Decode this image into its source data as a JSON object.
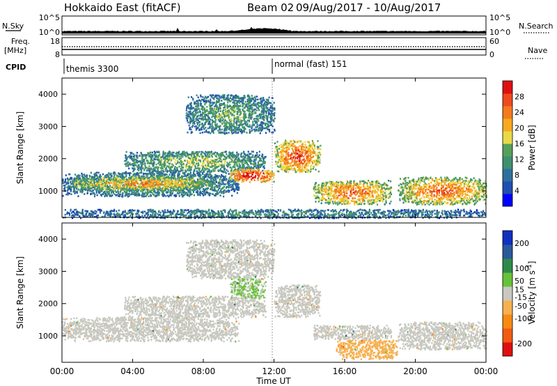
{
  "header": {
    "title": "Hokkaido East (fitACF)",
    "beam": "Beam 02",
    "date_range": "09/Aug/2017 - 10/Aug/2017"
  },
  "top_panels": {
    "nsky_label": "N.Sky",
    "nsky_ticks": [
      "10^5",
      "10^0"
    ],
    "nsearch_label": "N.Search",
    "nsearch_ticks": [
      "10^5",
      "10^0"
    ],
    "freq_label_1": "Freq.",
    "freq_label_2": "[MHz]",
    "freq_ticks": [
      "18",
      "8"
    ],
    "nave_label": "Nave",
    "nave_ticks": [
      "60",
      "0"
    ],
    "cpid_label": "CPID",
    "cpid_segments": [
      {
        "label": "themis 3300",
        "start_hour": 0
      },
      {
        "label": "normal (fast) 151",
        "start_hour": 12
      }
    ]
  },
  "chart_data": [
    {
      "type": "heatmap",
      "title": "",
      "xlabel": "",
      "ylabel": "Slant Range [km]",
      "xlim": [
        0,
        24
      ],
      "ylim": [
        180,
        4500
      ],
      "yticks": [
        1000,
        2000,
        3000,
        4000
      ],
      "colorbar": {
        "label": "Power [dB]",
        "ticks": [
          4,
          8,
          12,
          16,
          20,
          24,
          28
        ],
        "range": [
          0,
          32
        ],
        "colors": [
          "#0000ff",
          "#1f4fb0",
          "#2e6f9e",
          "#3f9070",
          "#55a05a",
          "#e9d94a",
          "#f7a91f",
          "#f47a1c",
          "#ef4a1e",
          "#e01010"
        ]
      },
      "regions": [
        {
          "name": "near-range band (00-10 UT)",
          "start_hour": 0,
          "end_hour": 10,
          "range_km": [
            850,
            1600
          ],
          "typical_value": 12
        },
        {
          "name": "near-range strong echoes",
          "start_hour": 0.5,
          "end_hour": 8.5,
          "range_km": [
            1050,
            1450
          ],
          "typical_value": 20
        },
        {
          "name": "mid-range patch",
          "start_hour": 3.5,
          "end_hour": 11.5,
          "range_km": [
            1600,
            2250
          ],
          "typical_value": 14
        },
        {
          "name": "far-range scatter",
          "start_hour": 7,
          "end_hour": 12,
          "range_km": [
            2800,
            4000
          ],
          "typical_value": 12
        },
        {
          "name": "intense echo 10-11 UT",
          "start_hour": 9.5,
          "end_hour": 12,
          "range_km": [
            1300,
            1700
          ],
          "typical_value": 28
        },
        {
          "name": "rising echo 12-15 UT",
          "start_hour": 12,
          "end_hour": 14.6,
          "range_km": [
            1600,
            2600
          ],
          "typical_value": 24
        },
        {
          "name": "afternoon band",
          "start_hour": 14.2,
          "end_hour": 18.6,
          "range_km": [
            600,
            1350
          ],
          "typical_value": 22
        },
        {
          "name": "evening band",
          "start_hour": 19,
          "end_hour": 24,
          "range_km": [
            600,
            1450
          ],
          "typical_value": 22
        },
        {
          "name": "ground scatter floor",
          "start_hour": 0,
          "end_hour": 24,
          "range_km": [
            180,
            450
          ],
          "typical_value": 10
        }
      ]
    },
    {
      "type": "heatmap",
      "title": "",
      "xlabel": "Time UT",
      "ylabel": "Slant Range [km]",
      "xlim": [
        0,
        24
      ],
      "ylim": [
        180,
        4500
      ],
      "xticks": [
        "00:00",
        "04:00",
        "08:00",
        "12:00",
        "16:00",
        "20:00",
        "00:00"
      ],
      "yticks": [
        1000,
        2000,
        3000,
        4000
      ],
      "colorbar": {
        "label": "Velocity [m s^-1]",
        "ticks": [
          200,
          100,
          50,
          15,
          -15,
          -50,
          -100,
          -200
        ],
        "range": [
          -250,
          250
        ],
        "colors": [
          "#e01010",
          "#f25b12",
          "#f78a12",
          "#f7b050",
          "#c8c8c0",
          "#66c23a",
          "#2e8a4a",
          "#2a5a9a",
          "#1030c0"
        ]
      },
      "regions": [
        {
          "name": "near-range band (00-10 UT)",
          "start_hour": 0,
          "end_hour": 10,
          "range_km": [
            850,
            1600
          ],
          "typical_value": 0
        },
        {
          "name": "mid-range patch",
          "start_hour": 3.5,
          "end_hour": 11.5,
          "range_km": [
            1600,
            2250
          ],
          "typical_value": 0
        },
        {
          "name": "far-range scatter",
          "start_hour": 7,
          "end_hour": 12,
          "range_km": [
            2800,
            4000
          ],
          "typical_value": 0
        },
        {
          "name": "rising echo 12-15 UT",
          "start_hour": 12,
          "end_hour": 14.6,
          "range_km": [
            1600,
            2600
          ],
          "typical_value": 0
        },
        {
          "name": "afternoon grey band",
          "start_hour": 14.2,
          "end_hour": 18.6,
          "range_km": [
            900,
            1350
          ],
          "typical_value": 0
        },
        {
          "name": "afternoon receding flow",
          "start_hour": 15.5,
          "end_hour": 19,
          "range_km": [
            300,
            900
          ],
          "typical_value": -60
        },
        {
          "name": "evening band",
          "start_hour": 19,
          "end_hour": 24,
          "range_km": [
            600,
            1450
          ],
          "typical_value": 0
        },
        {
          "name": "green low-velocity patch",
          "start_hour": 9.5,
          "end_hour": 11.5,
          "range_km": [
            2200,
            2800
          ],
          "typical_value": 30
        }
      ]
    }
  ]
}
